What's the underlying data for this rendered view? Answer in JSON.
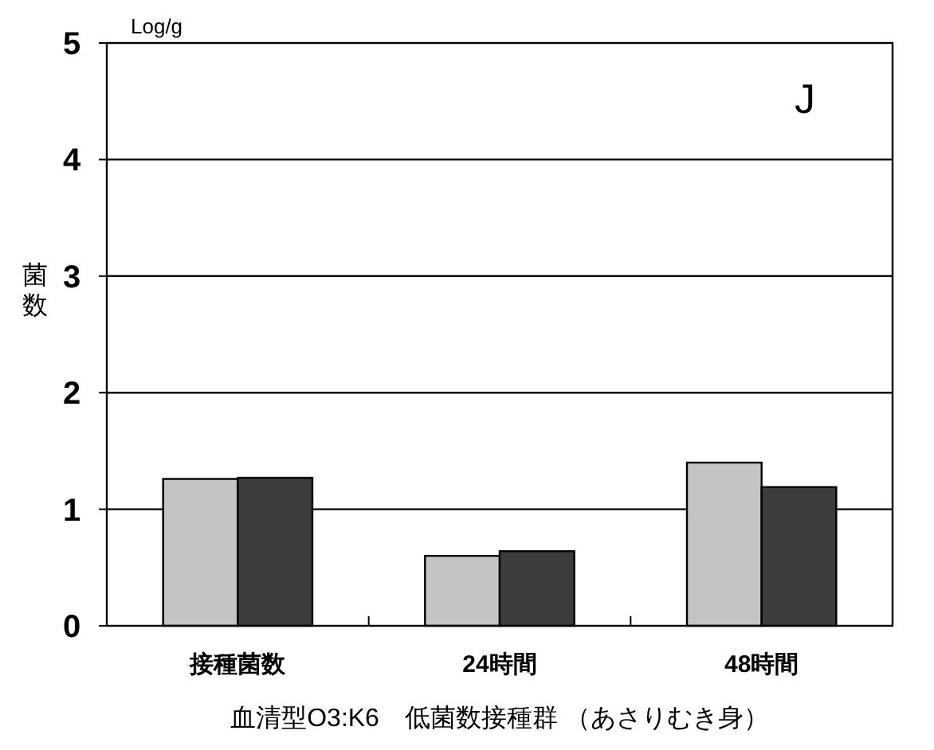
{
  "chart_data": {
    "type": "bar",
    "categories": [
      "接種菌数",
      "24時間",
      "48時間"
    ],
    "series": [
      {
        "color": "#c4c4c4",
        "values": [
          1.26,
          0.6,
          1.4
        ]
      },
      {
        "color": "#3c3c3c",
        "values": [
          1.27,
          0.64,
          1.19
        ]
      }
    ],
    "ylim": [
      0,
      5
    ],
    "yticks": [
      0,
      1,
      2,
      3,
      4,
      5
    ],
    "grid": "y",
    "ylabel": "菌数",
    "xlabel": "血清型O3:K6　低菌数接種群 （あさりむき身）",
    "annotations": [
      "Log/g",
      "J"
    ]
  }
}
